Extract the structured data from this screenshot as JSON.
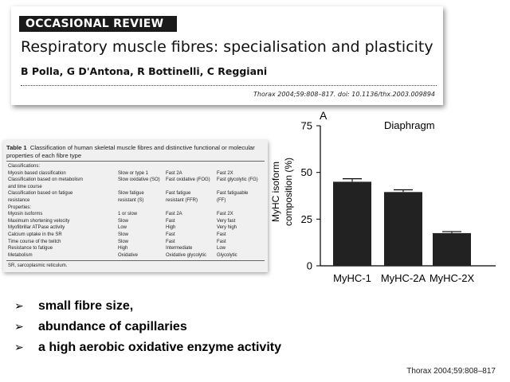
{
  "paper": {
    "section_badge": "OCCASIONAL REVIEW",
    "title": "Respiratory muscle fibres: specialisation and plasticity",
    "authors": "B Polla, G D'Antona, R Bottinelli, C Reggiani",
    "citation": "Thorax 2004;59:808–817. doi: 10.1136/thx.2003.009894"
  },
  "table": {
    "caption_label": "Table 1",
    "caption_text": "Classification of human skeletal muscle fibres and distinctive functional or molecular properties of each fibre type",
    "rows": [
      {
        "label": "Classifications:",
        "c1": "",
        "c2": "",
        "c3": ""
      },
      {
        "label": "Myosin based classification",
        "c1": "Slow or type 1",
        "c2": "Fast 2A",
        "c3": "Fast 2X"
      },
      {
        "label": "Classification based on metabolism",
        "c1": "Slow oxidative (SO)",
        "c2": "Fast oxidative (FOG)",
        "c3": "Fast glycolytic (FG)"
      },
      {
        "label": "and time course",
        "c1": "",
        "c2": "",
        "c3": ""
      },
      {
        "label": "Classification based on fatigue",
        "c1": "Slow fatigue",
        "c2": "Fast fatigue",
        "c3": "Fast fatiguable"
      },
      {
        "label": "resistance",
        "c1": "resistant (S)",
        "c2": "resistant (FFR)",
        "c3": "(FF)"
      },
      {
        "label": "Properties:",
        "c1": "",
        "c2": "",
        "c3": ""
      },
      {
        "label": "Myosin isoforms",
        "c1": "1 or slow",
        "c2": "Fast 2A",
        "c3": "Fast 2X"
      },
      {
        "label": "Maximum shortening velocity",
        "c1": "Slow",
        "c2": "Fast",
        "c3": "Very fast"
      },
      {
        "label": "Myofibrillar ATPase activity",
        "c1": "Low",
        "c2": "High",
        "c3": "Very high"
      },
      {
        "label": "Calcium uptake in the SR",
        "c1": "Slow",
        "c2": "Fast",
        "c3": "Fast"
      },
      {
        "label": "Time course of the twitch",
        "c1": "Slow",
        "c2": "Fast",
        "c3": "Fast"
      },
      {
        "label": "Resistance to fatigue",
        "c1": "High",
        "c2": "Intermediate",
        "c3": "Low"
      },
      {
        "label": "Metabolism",
        "c1": "Oxidative",
        "c2": "Oxidative glycolytic",
        "c3": "Glycolytic"
      }
    ],
    "footnote": "SR, sarcoplasmic reticulum."
  },
  "chart_data": {
    "type": "bar",
    "panel_label": "A",
    "title": "Diaphragm",
    "ylabel_line1": "MyHC isoform",
    "ylabel_line2": "composition (%)",
    "xlabel": "",
    "categories": [
      "MyHC-1",
      "MyHC-2A",
      "MyHC-2X"
    ],
    "values": [
      45,
      39.5,
      17.5
    ],
    "errors": [
      1.6,
      1.2,
      0.8
    ],
    "ylim": [
      0,
      75
    ],
    "yticks": [
      0,
      25,
      50,
      75
    ],
    "grid": false,
    "bar_color": "#222222"
  },
  "bullets": [
    {
      "mark": "➢",
      "text": "small fibre size,"
    },
    {
      "mark": "➢",
      "text": "abundance of capillaries"
    },
    {
      "mark": "➢",
      "text": "a high aerobic oxidative enzyme activity"
    }
  ],
  "footer_citation": "Thorax 2004;59:808–817"
}
